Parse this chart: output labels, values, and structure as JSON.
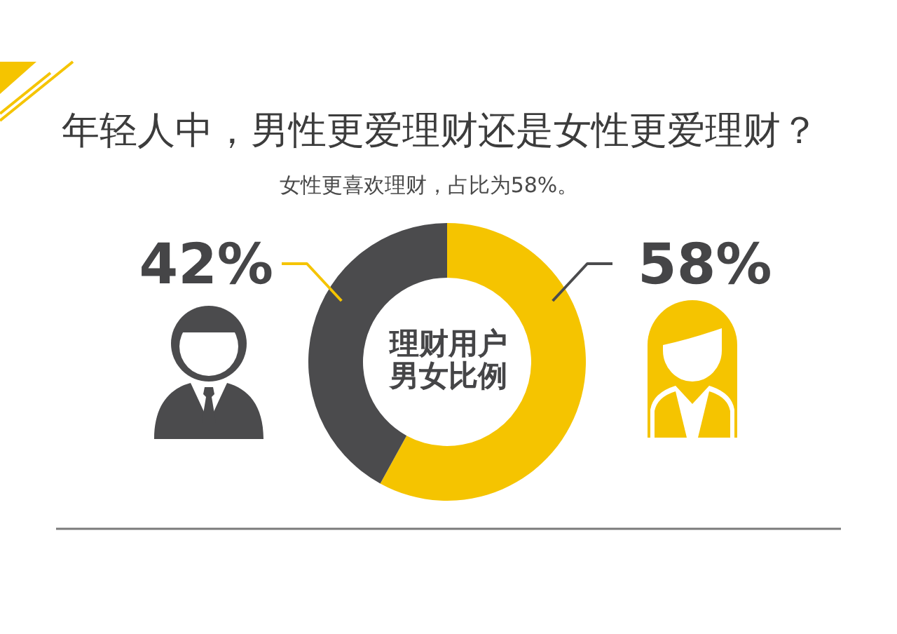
{
  "chart_data": {
    "type": "donut",
    "title": "年轻人中，男性更爱理财还是女性更爱理财？",
    "subtitle": "女性更喜欢理财，占比为58%。",
    "categories": [
      null,
      null
    ],
    "values": [
      58,
      42
    ],
    "colors": [
      "#f5c400",
      "#4b4b4d"
    ],
    "value_labels": [
      "58%",
      "42%"
    ],
    "annotations": [
      "理财用户男女比例"
    ]
  }
}
